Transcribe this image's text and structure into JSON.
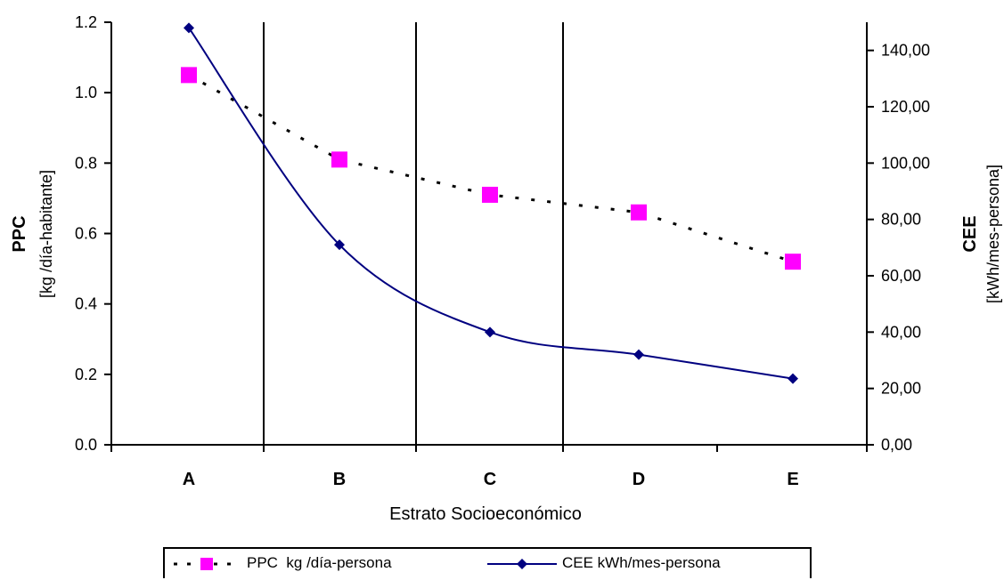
{
  "chart_data": {
    "type": "line",
    "title": "",
    "xlabel": "Estrato Socioeconómico",
    "categories": [
      "A",
      "B",
      "C",
      "D",
      "E"
    ],
    "y_left": {
      "label_line1": "PPC",
      "label_line2": "[kg /día-habitante]",
      "range": [
        0,
        1.2
      ],
      "ticks": [
        "0.0",
        "0.2",
        "0.4",
        "0.6",
        "0.8",
        "1.0",
        "1.2"
      ],
      "tick_values": [
        0,
        0.2,
        0.4,
        0.6,
        0.8,
        1.0,
        1.2
      ]
    },
    "y_right": {
      "label_line1": "CEE",
      "label_line2": "[kWh/mes-persona]",
      "range": [
        0,
        150
      ],
      "ticks": [
        "0,00",
        "20,00",
        "40,00",
        "60,00",
        "80,00",
        "100,00",
        "120,00",
        "140,00"
      ],
      "tick_values": [
        0,
        20,
        40,
        60,
        80,
        100,
        120,
        140
      ]
    },
    "series": [
      {
        "name": "PPC  kg /día-persona",
        "axis": "left",
        "style": "dotted",
        "marker": "square",
        "color": "#ff00ff",
        "line_color": "#000000",
        "values": [
          1.05,
          0.81,
          0.71,
          0.66,
          0.52
        ]
      },
      {
        "name": "CEE kWh/mes-persona",
        "axis": "right",
        "style": "solid",
        "marker": "diamond",
        "color": "#000080",
        "line_color": "#000080",
        "values": [
          148,
          71,
          40,
          32,
          23.5
        ]
      }
    ],
    "grid": "vertical lines between categories",
    "legend_position": "bottom"
  }
}
